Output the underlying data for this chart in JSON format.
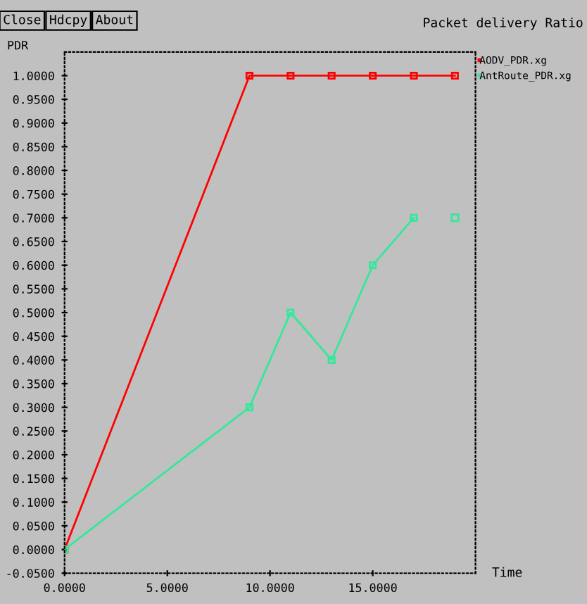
{
  "chart_data": {
    "type": "line",
    "title": "Packet delivery Ratio",
    "xlabel": "Time",
    "ylabel": "PDR",
    "annotations": [
      "Close",
      "Hdcpy",
      "About"
    ],
    "x": [
      0,
      9,
      11,
      13,
      15,
      17,
      19
    ],
    "series": [
      {
        "name": "AODV_PDR.xg",
        "color": "#ff0000",
        "values": [
          0,
          1,
          1,
          1,
          1,
          1,
          1
        ]
      },
      {
        "name": "AntRoute_PDR.xg",
        "color": "#33e89a",
        "values": [
          0,
          0.3,
          0.5,
          0.4,
          0.6,
          0.7,
          null
        ]
      },
      {
        "type": "scatter",
        "color": "#33e89a",
        "values": [
          null,
          null,
          null,
          null,
          null,
          null,
          0.7
        ]
      }
    ],
    "xlim": [
      0,
      20
    ],
    "ylim": [
      -0.05,
      1.05
    ],
    "xticks": [
      {
        "value": 0,
        "label": "0.0000"
      },
      {
        "value": 5,
        "label": "5.0000"
      },
      {
        "value": 10,
        "label": "10.0000"
      },
      {
        "value": 15,
        "label": "15.0000"
      }
    ],
    "yticks": [
      {
        "value": -0.05,
        "label": "-0.0500"
      },
      {
        "value": 0,
        "label": "0.0000"
      },
      {
        "value": 0.05,
        "label": "0.0500"
      },
      {
        "value": 0.1,
        "label": "0.1000"
      },
      {
        "value": 0.15,
        "label": "0.1500"
      },
      {
        "value": 0.2,
        "label": "0.2000"
      },
      {
        "value": 0.25,
        "label": "0.2500"
      },
      {
        "value": 0.3,
        "label": "0.3000"
      },
      {
        "value": 0.35,
        "label": "0.3500"
      },
      {
        "value": 0.4,
        "label": "0.4000"
      },
      {
        "value": 0.45,
        "label": "0.4500"
      },
      {
        "value": 0.5,
        "label": "0.5000"
      },
      {
        "value": 0.55,
        "label": "0.5500"
      },
      {
        "value": 0.6,
        "label": "0.6000"
      },
      {
        "value": 0.65,
        "label": "0.6500"
      },
      {
        "value": 0.7,
        "label": "0.7000"
      },
      {
        "value": 0.75,
        "label": "0.7500"
      },
      {
        "value": 0.8,
        "label": "0.8000"
      },
      {
        "value": 0.85,
        "label": "0.8500"
      },
      {
        "value": 0.9,
        "label": "0.9000"
      },
      {
        "value": 0.95,
        "label": "0.9500"
      },
      {
        "value": 1,
        "label": "1.0000"
      }
    ],
    "marker": "square",
    "legend": "top right",
    "grid": false
  }
}
